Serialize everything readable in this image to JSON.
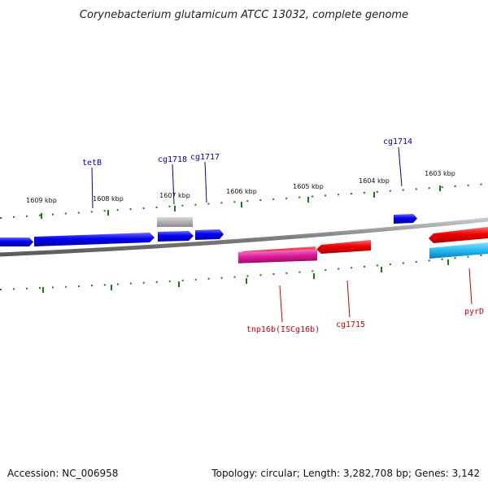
{
  "title": "Corynebacterium glutamicum ATCC 13032, complete genome",
  "footer": {
    "accession": "Accession: NC_006958",
    "stats": "Topology: circular; Length: 3,282,708 bp; Genes: 3,142"
  },
  "colors": {
    "backbone": "#8a8a8a",
    "forward_gene": "#0000ee",
    "reverse_gene": "#ee0000",
    "forward_label": "#0000aa",
    "reverse_label": "#cc0000",
    "pseudo_gene": "#b0b0b0",
    "pink_feature": "#e0199a",
    "cyan_feature": "#22b8f0",
    "tick": "#1a7a1a"
  },
  "kbp_labels": [
    "1609 kbp",
    "1608 kbp",
    "1607 kbp",
    "1606 kbp",
    "1605 kbp",
    "1604 kbp",
    "1603 kbp"
  ],
  "gene_labels": {
    "tetB": "tetB",
    "cg1718": "cg1718",
    "cg1717": "cg1717",
    "cg1714": "cg1714",
    "tnp16b": "tnp16b(ISCg16b)",
    "cg1715": "cg1715",
    "pyrD": "pyrD"
  }
}
